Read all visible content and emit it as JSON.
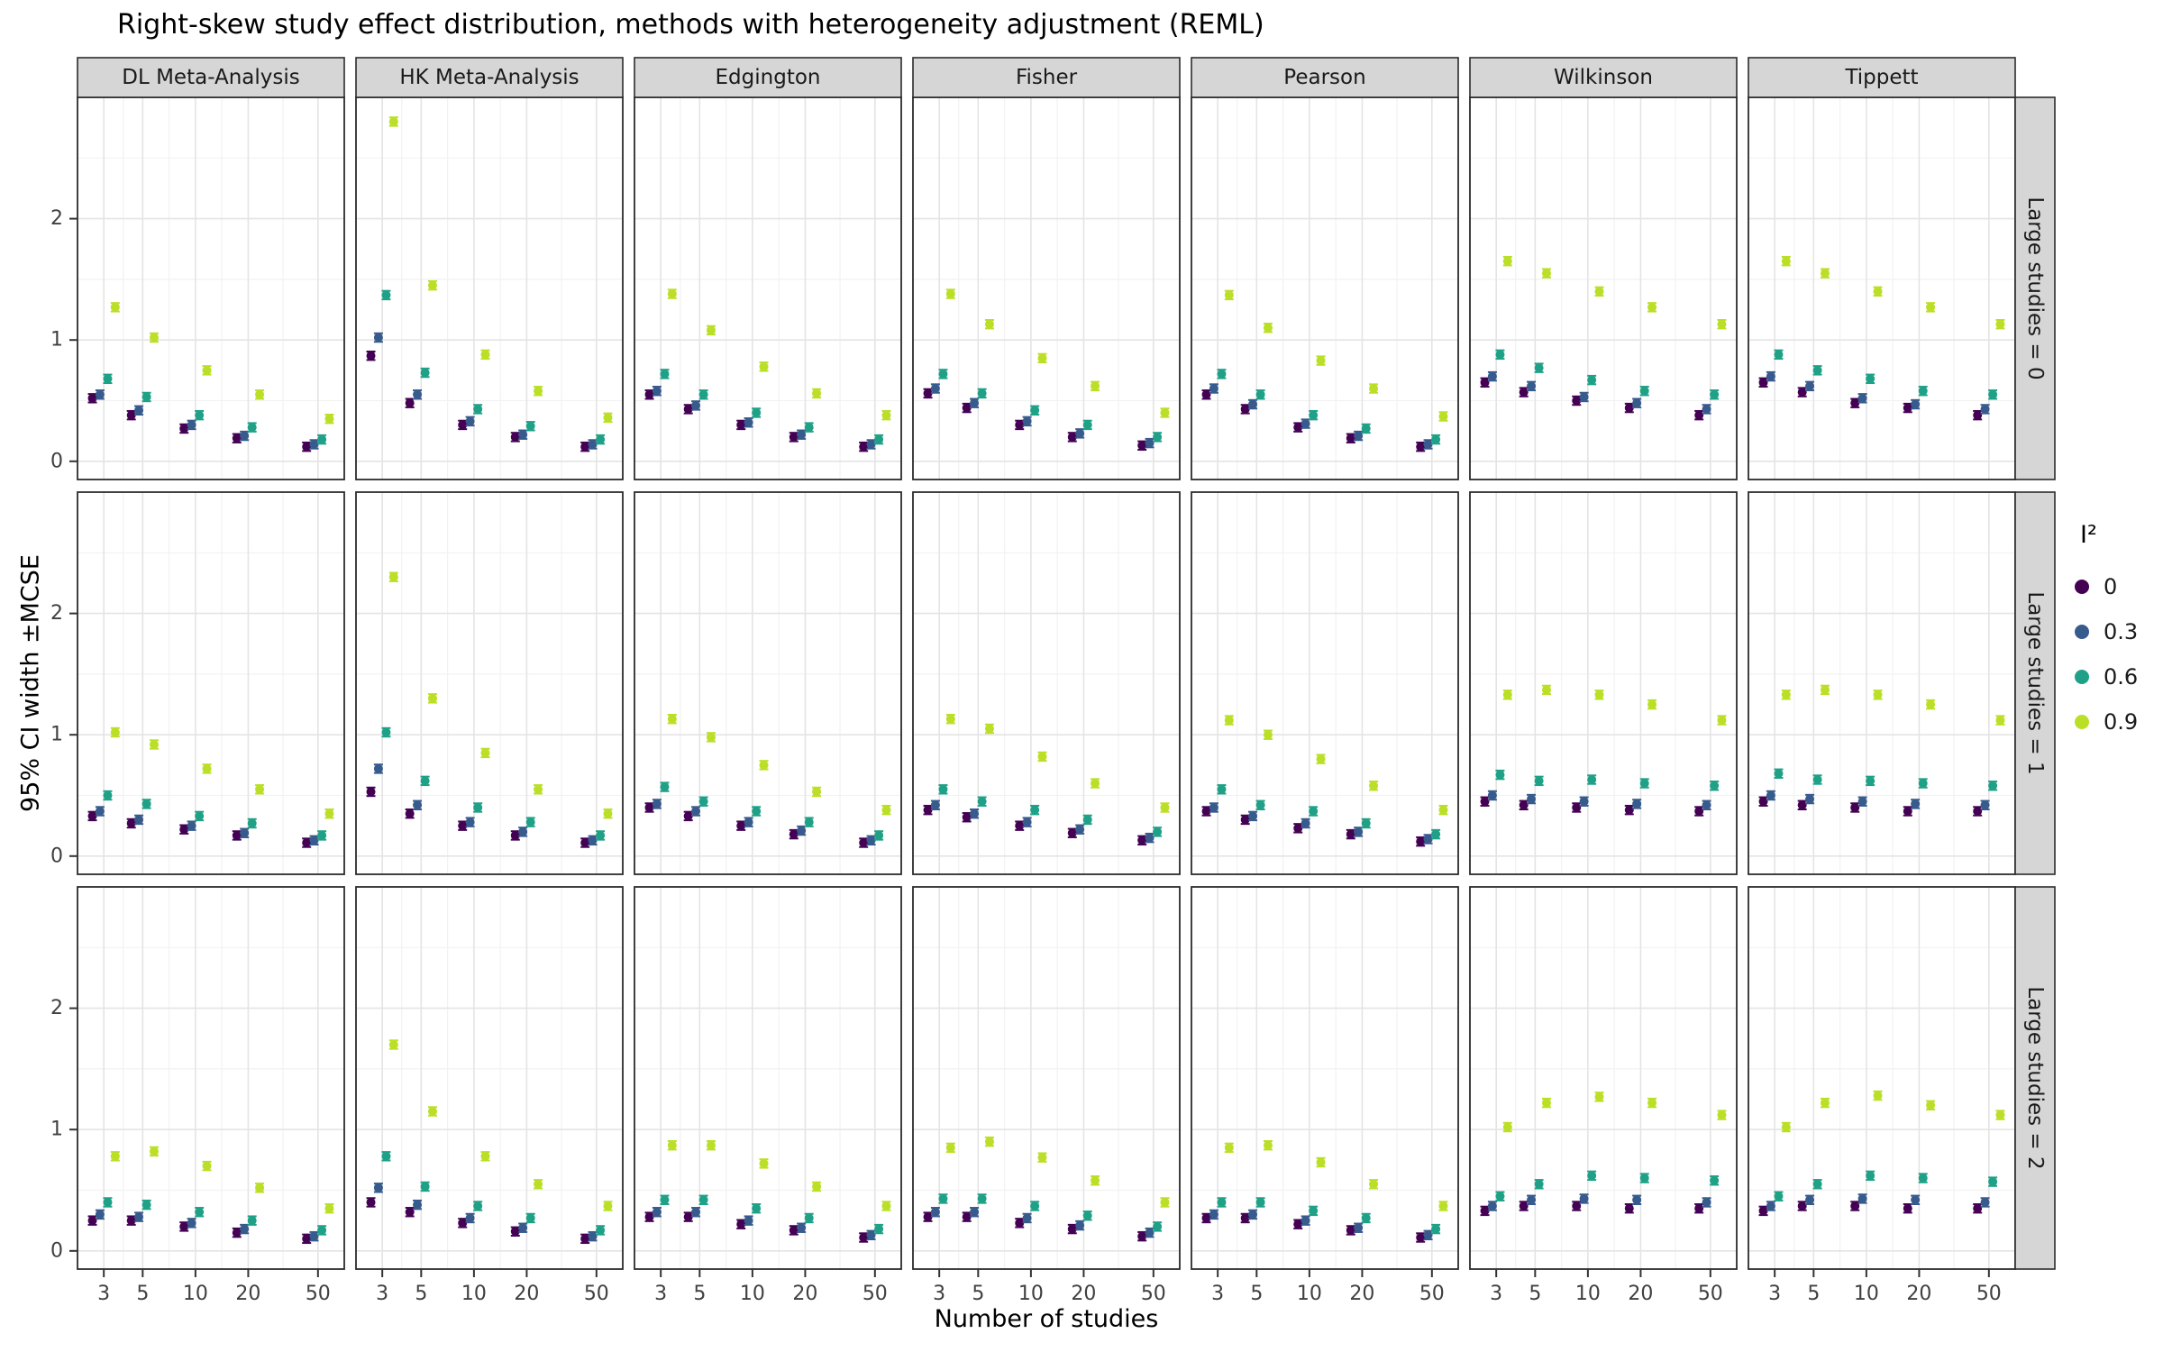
{
  "chart_data": {
    "type": "scatter",
    "title": "Right-skew study effect distribution, methods with heterogeneity adjustment (REML)",
    "xlabel": "Number of studies",
    "ylabel": "95% CI width ±MCSE",
    "x_scale": "log10",
    "x_ticks": [
      3,
      5,
      10,
      20,
      50
    ],
    "y_ticks": [
      0,
      1,
      2
    ],
    "ylim": [
      -0.15,
      3.0
    ],
    "mcse_halfwidth": 0.035,
    "grid": "on",
    "legend": {
      "title": "I²",
      "position": "right",
      "entries": [
        {
          "label": "0",
          "color": "#440154"
        },
        {
          "label": "0.3",
          "color": "#375B8D"
        },
        {
          "label": "0.6",
          "color": "#1FA187"
        },
        {
          "label": "0.9",
          "color": "#BBDF27"
        }
      ]
    },
    "col_facets": [
      "DL Meta-Analysis",
      "HK Meta-Analysis",
      "Edgington",
      "Fisher",
      "Pearson",
      "Wilkinson",
      "Tippett"
    ],
    "row_facets": [
      "Large studies = 0",
      "Large studies = 1",
      "Large studies = 2"
    ],
    "x": [
      3,
      5,
      10,
      20,
      50
    ],
    "series_order": [
      "0",
      "0.3",
      "0.6",
      "0.9"
    ],
    "panels": [
      {
        "row": "Large studies = 0",
        "col": "DL Meta-Analysis",
        "values": [
          [
            0.52,
            0.38,
            0.27,
            0.19,
            0.12
          ],
          [
            0.55,
            0.42,
            0.3,
            0.21,
            0.14
          ],
          [
            0.68,
            0.53,
            0.38,
            0.28,
            0.18
          ],
          [
            1.27,
            1.02,
            0.75,
            0.55,
            0.35
          ]
        ]
      },
      {
        "row": "Large studies = 0",
        "col": "HK Meta-Analysis",
        "values": [
          [
            0.87,
            0.48,
            0.3,
            0.2,
            0.12
          ],
          [
            1.02,
            0.55,
            0.33,
            0.22,
            0.14
          ],
          [
            1.37,
            0.73,
            0.43,
            0.29,
            0.18
          ],
          [
            2.8,
            1.45,
            0.88,
            0.58,
            0.36
          ]
        ]
      },
      {
        "row": "Large studies = 0",
        "col": "Edgington",
        "values": [
          [
            0.55,
            0.43,
            0.3,
            0.2,
            0.12
          ],
          [
            0.58,
            0.46,
            0.32,
            0.22,
            0.14
          ],
          [
            0.72,
            0.55,
            0.4,
            0.28,
            0.18
          ],
          [
            1.38,
            1.08,
            0.78,
            0.56,
            0.38
          ]
        ]
      },
      {
        "row": "Large studies = 0",
        "col": "Fisher",
        "values": [
          [
            0.56,
            0.44,
            0.3,
            0.2,
            0.13
          ],
          [
            0.6,
            0.48,
            0.33,
            0.23,
            0.15
          ],
          [
            0.72,
            0.56,
            0.42,
            0.3,
            0.2
          ],
          [
            1.38,
            1.13,
            0.85,
            0.62,
            0.4
          ]
        ]
      },
      {
        "row": "Large studies = 0",
        "col": "Pearson",
        "values": [
          [
            0.55,
            0.43,
            0.28,
            0.19,
            0.12
          ],
          [
            0.6,
            0.47,
            0.31,
            0.21,
            0.14
          ],
          [
            0.72,
            0.55,
            0.38,
            0.27,
            0.18
          ],
          [
            1.37,
            1.1,
            0.83,
            0.6,
            0.37
          ]
        ]
      },
      {
        "row": "Large studies = 0",
        "col": "Wilkinson",
        "values": [
          [
            0.65,
            0.57,
            0.5,
            0.44,
            0.38
          ],
          [
            0.7,
            0.62,
            0.53,
            0.48,
            0.43
          ],
          [
            0.88,
            0.77,
            0.67,
            0.58,
            0.55
          ],
          [
            1.65,
            1.55,
            1.4,
            1.27,
            1.13
          ]
        ]
      },
      {
        "row": "Large studies = 0",
        "col": "Tippett",
        "values": [
          [
            0.65,
            0.57,
            0.48,
            0.44,
            0.38
          ],
          [
            0.7,
            0.62,
            0.52,
            0.47,
            0.43
          ],
          [
            0.88,
            0.75,
            0.68,
            0.58,
            0.55
          ],
          [
            1.65,
            1.55,
            1.4,
            1.27,
            1.13
          ]
        ]
      },
      {
        "row": "Large studies = 1",
        "col": "DL Meta-Analysis",
        "values": [
          [
            0.33,
            0.27,
            0.22,
            0.17,
            0.11
          ],
          [
            0.37,
            0.3,
            0.25,
            0.19,
            0.13
          ],
          [
            0.5,
            0.43,
            0.33,
            0.27,
            0.17
          ],
          [
            1.02,
            0.92,
            0.72,
            0.55,
            0.35
          ]
        ]
      },
      {
        "row": "Large studies = 1",
        "col": "HK Meta-Analysis",
        "values": [
          [
            0.53,
            0.35,
            0.25,
            0.17,
            0.11
          ],
          [
            0.72,
            0.42,
            0.28,
            0.2,
            0.13
          ],
          [
            1.02,
            0.62,
            0.4,
            0.28,
            0.17
          ],
          [
            2.3,
            1.3,
            0.85,
            0.55,
            0.35
          ]
        ]
      },
      {
        "row": "Large studies = 1",
        "col": "Edgington",
        "values": [
          [
            0.4,
            0.33,
            0.25,
            0.18,
            0.11
          ],
          [
            0.43,
            0.37,
            0.28,
            0.21,
            0.13
          ],
          [
            0.57,
            0.45,
            0.37,
            0.28,
            0.17
          ],
          [
            1.13,
            0.98,
            0.75,
            0.53,
            0.38
          ]
        ]
      },
      {
        "row": "Large studies = 1",
        "col": "Fisher",
        "values": [
          [
            0.38,
            0.32,
            0.25,
            0.19,
            0.13
          ],
          [
            0.42,
            0.35,
            0.28,
            0.22,
            0.15
          ],
          [
            0.55,
            0.45,
            0.38,
            0.3,
            0.2
          ],
          [
            1.13,
            1.05,
            0.82,
            0.6,
            0.4
          ]
        ]
      },
      {
        "row": "Large studies = 1",
        "col": "Pearson",
        "values": [
          [
            0.37,
            0.3,
            0.23,
            0.18,
            0.12
          ],
          [
            0.4,
            0.33,
            0.27,
            0.2,
            0.14
          ],
          [
            0.55,
            0.42,
            0.37,
            0.27,
            0.18
          ],
          [
            1.12,
            1.0,
            0.8,
            0.58,
            0.38
          ]
        ]
      },
      {
        "row": "Large studies = 1",
        "col": "Wilkinson",
        "values": [
          [
            0.45,
            0.42,
            0.4,
            0.38,
            0.37
          ],
          [
            0.5,
            0.47,
            0.45,
            0.43,
            0.42
          ],
          [
            0.67,
            0.62,
            0.63,
            0.6,
            0.58
          ],
          [
            1.33,
            1.37,
            1.33,
            1.25,
            1.12
          ]
        ]
      },
      {
        "row": "Large studies = 1",
        "col": "Tippett",
        "values": [
          [
            0.45,
            0.42,
            0.4,
            0.37,
            0.37
          ],
          [
            0.5,
            0.47,
            0.45,
            0.43,
            0.42
          ],
          [
            0.68,
            0.63,
            0.62,
            0.6,
            0.58
          ],
          [
            1.33,
            1.37,
            1.33,
            1.25,
            1.12
          ]
        ]
      },
      {
        "row": "Large studies = 2",
        "col": "DL Meta-Analysis",
        "values": [
          [
            0.25,
            0.25,
            0.2,
            0.15,
            0.1
          ],
          [
            0.3,
            0.28,
            0.23,
            0.18,
            0.12
          ],
          [
            0.4,
            0.38,
            0.32,
            0.25,
            0.17
          ],
          [
            0.78,
            0.82,
            0.7,
            0.52,
            0.35
          ]
        ]
      },
      {
        "row": "Large studies = 2",
        "col": "HK Meta-Analysis",
        "values": [
          [
            0.4,
            0.32,
            0.23,
            0.16,
            0.1
          ],
          [
            0.52,
            0.38,
            0.27,
            0.19,
            0.12
          ],
          [
            0.78,
            0.53,
            0.37,
            0.27,
            0.17
          ],
          [
            1.7,
            1.15,
            0.78,
            0.55,
            0.37
          ]
        ]
      },
      {
        "row": "Large studies = 2",
        "col": "Edgington",
        "values": [
          [
            0.28,
            0.28,
            0.22,
            0.17,
            0.11
          ],
          [
            0.32,
            0.32,
            0.25,
            0.19,
            0.13
          ],
          [
            0.42,
            0.42,
            0.35,
            0.27,
            0.18
          ],
          [
            0.87,
            0.87,
            0.72,
            0.53,
            0.37
          ]
        ]
      },
      {
        "row": "Large studies = 2",
        "col": "Fisher",
        "values": [
          [
            0.28,
            0.28,
            0.23,
            0.18,
            0.12
          ],
          [
            0.32,
            0.32,
            0.27,
            0.21,
            0.15
          ],
          [
            0.43,
            0.43,
            0.37,
            0.29,
            0.2
          ],
          [
            0.85,
            0.9,
            0.77,
            0.58,
            0.4
          ]
        ]
      },
      {
        "row": "Large studies = 2",
        "col": "Pearson",
        "values": [
          [
            0.27,
            0.27,
            0.22,
            0.17,
            0.11
          ],
          [
            0.3,
            0.3,
            0.25,
            0.19,
            0.13
          ],
          [
            0.4,
            0.4,
            0.33,
            0.27,
            0.18
          ],
          [
            0.85,
            0.87,
            0.73,
            0.55,
            0.37
          ]
        ]
      },
      {
        "row": "Large studies = 2",
        "col": "Wilkinson",
        "values": [
          [
            0.33,
            0.37,
            0.37,
            0.35,
            0.35
          ],
          [
            0.37,
            0.42,
            0.43,
            0.42,
            0.4
          ],
          [
            0.45,
            0.55,
            0.62,
            0.6,
            0.58
          ],
          [
            1.02,
            1.22,
            1.27,
            1.22,
            1.12
          ]
        ]
      },
      {
        "row": "Large studies = 2",
        "col": "Tippett",
        "values": [
          [
            0.33,
            0.37,
            0.37,
            0.35,
            0.35
          ],
          [
            0.37,
            0.42,
            0.43,
            0.42,
            0.4
          ],
          [
            0.45,
            0.55,
            0.62,
            0.6,
            0.57
          ],
          [
            1.02,
            1.22,
            1.28,
            1.2,
            1.12
          ]
        ]
      }
    ],
    "style": {
      "strip_fill": "#D6D6D6",
      "strip_border": "#2B2B2B",
      "panel_border": "#2B2B2B",
      "grid_major": "#E4E4E4",
      "grid_minor": "#F2F2F2",
      "tick_text": "#404040"
    }
  }
}
